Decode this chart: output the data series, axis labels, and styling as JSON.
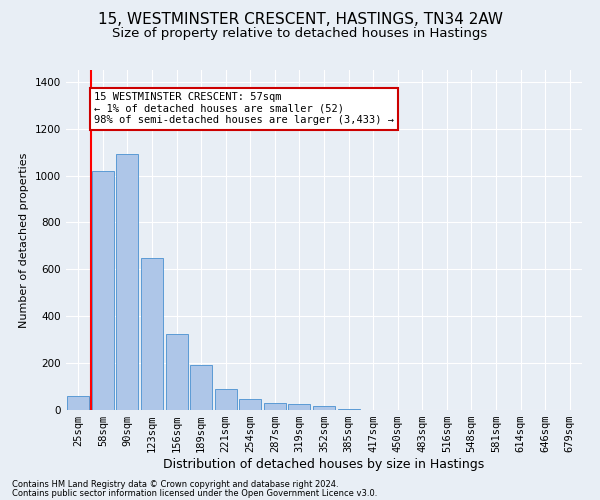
{
  "title_line1": "15, WESTMINSTER CRESCENT, HASTINGS, TN34 2AW",
  "title_line2": "Size of property relative to detached houses in Hastings",
  "xlabel": "Distribution of detached houses by size in Hastings",
  "ylabel": "Number of detached properties",
  "footnote1": "Contains HM Land Registry data © Crown copyright and database right 2024.",
  "footnote2": "Contains public sector information licensed under the Open Government Licence v3.0.",
  "annotation_line1": "15 WESTMINSTER CRESCENT: 57sqm",
  "annotation_line2": "← 1% of detached houses are smaller (52)",
  "annotation_line3": "98% of semi-detached houses are larger (3,433) →",
  "bar_categories": [
    "25sqm",
    "58sqm",
    "90sqm",
    "123sqm",
    "156sqm",
    "189sqm",
    "221sqm",
    "254sqm",
    "287sqm",
    "319sqm",
    "352sqm",
    "385sqm",
    "417sqm",
    "450sqm",
    "483sqm",
    "516sqm",
    "548sqm",
    "581sqm",
    "614sqm",
    "646sqm",
    "679sqm"
  ],
  "bar_values": [
    60,
    1020,
    1090,
    650,
    325,
    190,
    90,
    45,
    28,
    25,
    18,
    5,
    0,
    0,
    0,
    0,
    0,
    0,
    0,
    0,
    0
  ],
  "bar_color": "#aec6e8",
  "bar_edge_color": "#5b9bd5",
  "red_line_x": 0.5,
  "ylim": [
    0,
    1450
  ],
  "yticks": [
    0,
    200,
    400,
    600,
    800,
    1000,
    1200,
    1400
  ],
  "background_color": "#e8eef5",
  "plot_bg_color": "#e8eef5",
  "grid_color": "#ffffff",
  "annotation_box_facecolor": "#ffffff",
  "annotation_border_color": "#cc0000",
  "title1_fontsize": 11,
  "title2_fontsize": 9.5,
  "xlabel_fontsize": 9,
  "ylabel_fontsize": 8,
  "tick_fontsize": 7.5,
  "footnote_fontsize": 6,
  "annotation_fontsize": 7.5
}
